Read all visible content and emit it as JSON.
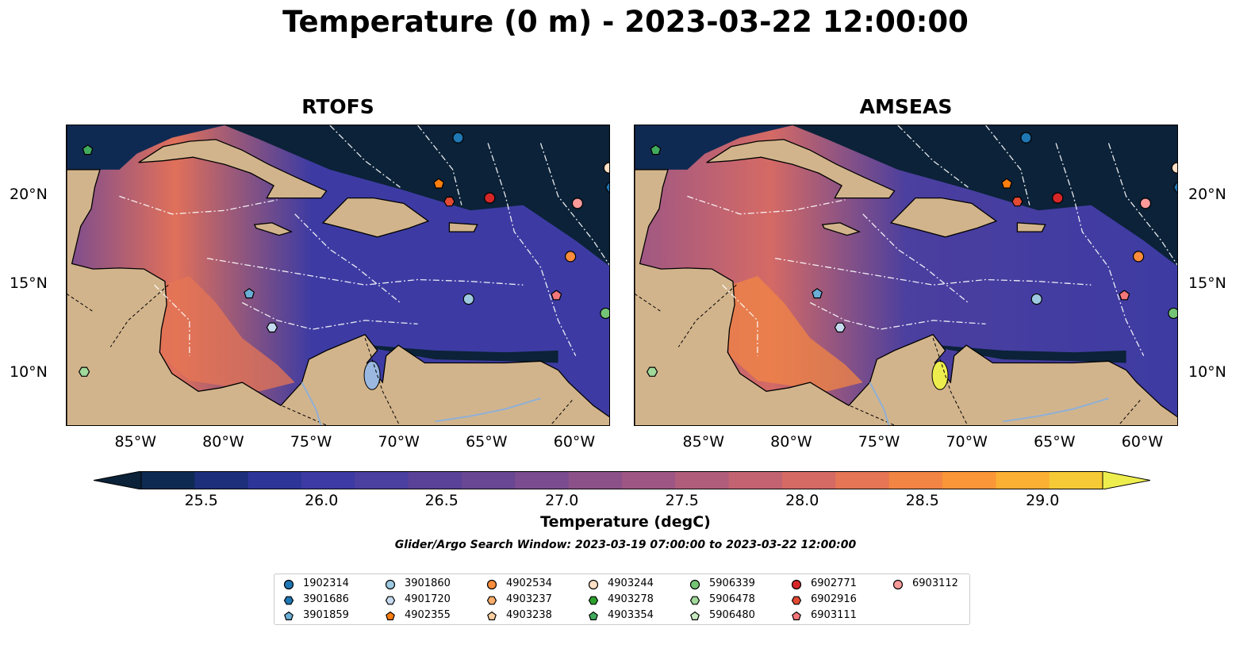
{
  "title": "Temperature (0 m) - 2023-03-22 12:00:00",
  "panels": [
    {
      "name": "RTOFS"
    },
    {
      "name": "AMSEAS"
    }
  ],
  "map": {
    "lon_range": [
      -89,
      -58
    ],
    "lat_range": [
      7,
      24
    ],
    "lon_ticks": [
      "85°W",
      "80°W",
      "75°W",
      "70°W",
      "65°W",
      "60°W"
    ],
    "lat_ticks": [
      "20°N",
      "15°N",
      "10°N"
    ],
    "land_color": "#d2b48c",
    "outside_domain_color": "#9ab8e0"
  },
  "colorbar": {
    "label": "Temperature (degC)",
    "ticks": [
      "25.5",
      "26.0",
      "26.5",
      "27.0",
      "27.5",
      "28.0",
      "28.5",
      "29.0"
    ],
    "range": [
      25.25,
      29.25
    ],
    "colors": [
      "#0b2238",
      "#0f2a52",
      "#1d2f7a",
      "#2e3598",
      "#3d3ba3",
      "#4b3f9f",
      "#5a4298",
      "#6a4793",
      "#7b4c8f",
      "#8c5189",
      "#9e5784",
      "#b05d7c",
      "#c36372",
      "#d56a65",
      "#e57554",
      "#f28544",
      "#fa9637",
      "#fbaf33",
      "#f6c936",
      "#edee4e"
    ]
  },
  "search_window": "Glider/Argo Search Window: 2023-03-19 07:00:00 to 2023-03-22 12:00:00",
  "legend": [
    {
      "id": "1902314",
      "marker": "circle",
      "color": "#1f77b4"
    },
    {
      "id": "3901686",
      "marker": "hexagon",
      "color": "#1f77b4"
    },
    {
      "id": "3901859",
      "marker": "pentagon",
      "color": "#6baed6"
    },
    {
      "id": "3901860",
      "marker": "circle",
      "color": "#9ecae1"
    },
    {
      "id": "4901720",
      "marker": "hexagon",
      "color": "#c6dbef"
    },
    {
      "id": "4902355",
      "marker": "pentagon",
      "color": "#ff7f0e"
    },
    {
      "id": "4902534",
      "marker": "circle",
      "color": "#fd8d3c"
    },
    {
      "id": "4903237",
      "marker": "hexagon",
      "color": "#fdae6b"
    },
    {
      "id": "4903238",
      "marker": "pentagon",
      "color": "#fdd0a2"
    },
    {
      "id": "4903244",
      "marker": "circle",
      "color": "#fde0c5"
    },
    {
      "id": "4903278",
      "marker": "hexagon",
      "color": "#2ca02c"
    },
    {
      "id": "4903354",
      "marker": "pentagon",
      "color": "#41ab5d"
    },
    {
      "id": "5906339",
      "marker": "circle",
      "color": "#74c476"
    },
    {
      "id": "5906478",
      "marker": "hexagon",
      "color": "#a1d99b"
    },
    {
      "id": "5906480",
      "marker": "pentagon",
      "color": "#c7e9c0"
    },
    {
      "id": "6902771",
      "marker": "circle",
      "color": "#d62728"
    },
    {
      "id": "6902916",
      "marker": "hexagon",
      "color": "#e34a33"
    },
    {
      "id": "6903111",
      "marker": "pentagon",
      "color": "#f4777a"
    },
    {
      "id": "6903112",
      "marker": "circle",
      "color": "#fc9a9a"
    }
  ],
  "floats": [
    {
      "id": "1902314",
      "lon": -66.7,
      "lat": 23.3
    },
    {
      "id": "3901686",
      "lon": -58.0,
      "lat": 20.5
    },
    {
      "id": "3901859",
      "lon": -78.6,
      "lat": 14.5
    },
    {
      "id": "3901860",
      "lon": -66.1,
      "lat": 14.2
    },
    {
      "id": "4901720",
      "lon": -77.3,
      "lat": 12.6
    },
    {
      "id": "4902355",
      "lon": -67.8,
      "lat": 20.7
    },
    {
      "id": "4902534",
      "lon": -60.3,
      "lat": 16.6
    },
    {
      "id": "4903244",
      "lon": -58.1,
      "lat": 21.6
    },
    {
      "id": "4903354",
      "lon": -87.8,
      "lat": 22.6
    },
    {
      "id": "5906339",
      "lon": -58.3,
      "lat": 13.4
    },
    {
      "id": "5906478",
      "lon": -88.0,
      "lat": 10.1
    },
    {
      "id": "6902771",
      "lon": -64.9,
      "lat": 19.9
    },
    {
      "id": "6902916",
      "lon": -67.2,
      "lat": 19.7
    },
    {
      "id": "6903111",
      "lon": -61.1,
      "lat": 14.4
    },
    {
      "id": "6903112",
      "lon": -59.9,
      "lat": 19.6
    }
  ]
}
